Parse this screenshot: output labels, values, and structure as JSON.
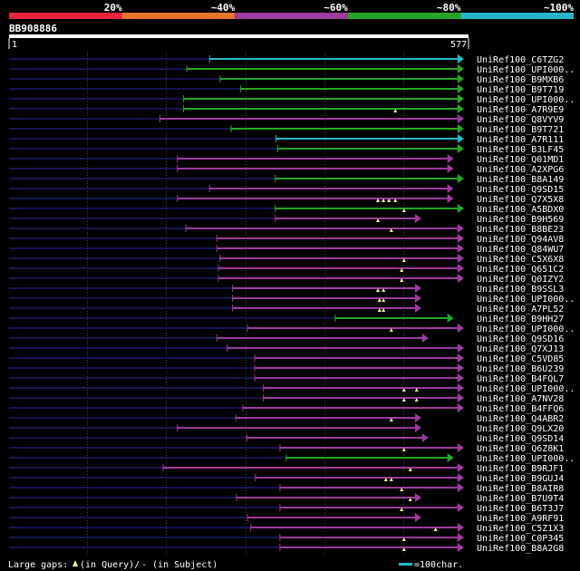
{
  "header": {
    "legend": [
      {
        "label": "20%",
        "color": "#e8243c"
      },
      {
        "label": "~40%",
        "color": "#e8742c"
      },
      {
        "label": "~60%",
        "color": "#9c3c9c"
      },
      {
        "label": "~80%",
        "color": "#26a626"
      },
      {
        "label": "~100%",
        "color": "#26b6c8"
      }
    ],
    "query_id": "BB908886",
    "ruler_start": "1",
    "ruler_end": "577"
  },
  "query_length": 577,
  "alignments": [
    {
      "label": "UniRef100_C6TZG2",
      "start": 255,
      "end": 577,
      "color": "#26b6c8",
      "gaps": []
    },
    {
      "label": "UniRef100_UPI000..",
      "start": 226,
      "end": 577,
      "color": "#26a626",
      "gaps": []
    },
    {
      "label": "UniRef100_B9MXB6",
      "start": 268,
      "end": 577,
      "color": "#26a626",
      "gaps": []
    },
    {
      "label": "UniRef100_B9T719",
      "start": 294,
      "end": 577,
      "color": "#26a626",
      "gaps": []
    },
    {
      "label": "UniRef100_UPI000..",
      "start": 222,
      "end": 577,
      "color": "#26a626",
      "gaps": []
    },
    {
      "label": "UniRef100_A7R9E9",
      "start": 222,
      "end": 577,
      "color": "#26a626",
      "gaps": [
        490
      ]
    },
    {
      "label": "UniRef100_Q8VYV9",
      "start": 192,
      "end": 577,
      "color": "#9c3c9c",
      "gaps": []
    },
    {
      "label": "UniRef100_B9T721",
      "start": 282,
      "end": 577,
      "color": "#26a626",
      "gaps": []
    },
    {
      "label": "UniRef100_A7R111",
      "start": 339,
      "end": 577,
      "color": "#26b6c8",
      "gaps": []
    },
    {
      "label": "UniRef100_B3LF45",
      "start": 341,
      "end": 577,
      "color": "#26a626",
      "gaps": []
    },
    {
      "label": "UniRef100_Q01MD1",
      "start": 214,
      "end": 564,
      "color": "#9c3c9c",
      "gaps": []
    },
    {
      "label": "UniRef100_A2XPG6",
      "start": 214,
      "end": 564,
      "color": "#9c3c9c",
      "gaps": []
    },
    {
      "label": "UniRef100_B8A149",
      "start": 338,
      "end": 577,
      "color": "#26a626",
      "gaps": []
    },
    {
      "label": "UniRef100_Q9SD15",
      "start": 255,
      "end": 564,
      "color": "#9c3c9c",
      "gaps": []
    },
    {
      "label": "UniRef100_Q7X5X8",
      "start": 214,
      "end": 564,
      "color": "#9c3c9c",
      "gaps": [
        468,
        475,
        482,
        490
      ]
    },
    {
      "label": "UniRef100_A5BDX0",
      "start": 338,
      "end": 577,
      "color": "#26a626",
      "gaps": [
        501
      ]
    },
    {
      "label": "UniRef100_B9H569",
      "start": 338,
      "end": 523,
      "color": "#9c3c9c",
      "gaps": [
        468
      ]
    },
    {
      "label": "UniRef100_B8BE23",
      "start": 225,
      "end": 577,
      "color": "#9c3c9c",
      "gaps": [
        485
      ]
    },
    {
      "label": "UniRef100_Q94AV8",
      "start": 264,
      "end": 577,
      "color": "#9c3c9c",
      "gaps": []
    },
    {
      "label": "UniRef100_Q84WU7",
      "start": 264,
      "end": 577,
      "color": "#9c3c9c",
      "gaps": []
    },
    {
      "label": "UniRef100_C5X6X8",
      "start": 268,
      "end": 577,
      "color": "#9c3c9c",
      "gaps": [
        501
      ]
    },
    {
      "label": "UniRef100_Q651C2",
      "start": 266,
      "end": 577,
      "color": "#9c3c9c",
      "gaps": [
        498
      ]
    },
    {
      "label": "UniRef100_Q0IZY2",
      "start": 266,
      "end": 577,
      "color": "#9c3c9c",
      "gaps": [
        498
      ]
    },
    {
      "label": "UniRef100_B9SSL3",
      "start": 284,
      "end": 523,
      "color": "#9c3c9c",
      "gaps": [
        468,
        475
      ]
    },
    {
      "label": "UniRef100_UPI000..",
      "start": 284,
      "end": 523,
      "color": "#9c3c9c",
      "gaps": [
        470,
        475
      ]
    },
    {
      "label": "UniRef100_A7PL52",
      "start": 284,
      "end": 523,
      "color": "#9c3c9c",
      "gaps": [
        470,
        475
      ]
    },
    {
      "label": "UniRef100_B9HH27",
      "start": 414,
      "end": 564,
      "color": "#26a626",
      "gaps": []
    },
    {
      "label": "UniRef100_UPI000..",
      "start": 303,
      "end": 577,
      "color": "#9c3c9c",
      "gaps": [
        485
      ]
    },
    {
      "label": "UniRef100_Q9SD16",
      "start": 264,
      "end": 532,
      "color": "#9c3c9c",
      "gaps": []
    },
    {
      "label": "UniRef100_Q7XJ13",
      "start": 277,
      "end": 577,
      "color": "#9c3c9c",
      "gaps": []
    },
    {
      "label": "UniRef100_C5VD85",
      "start": 312,
      "end": 577,
      "color": "#9c3c9c",
      "gaps": []
    },
    {
      "label": "UniRef100_B6U239",
      "start": 312,
      "end": 577,
      "color": "#9c3c9c",
      "gaps": []
    },
    {
      "label": "UniRef100_B4FQL7",
      "start": 312,
      "end": 577,
      "color": "#9c3c9c",
      "gaps": []
    },
    {
      "label": "UniRef100_UPI000..",
      "start": 323,
      "end": 577,
      "color": "#9c3c9c",
      "gaps": [
        501,
        517
      ]
    },
    {
      "label": "UniRef100_A7NV28",
      "start": 323,
      "end": 577,
      "color": "#9c3c9c",
      "gaps": [
        501,
        517
      ]
    },
    {
      "label": "UniRef100_B4FFQ6",
      "start": 297,
      "end": 577,
      "color": "#9c3c9c",
      "gaps": []
    },
    {
      "label": "UniRef100_Q4ABR2",
      "start": 288,
      "end": 523,
      "color": "#9c3c9c",
      "gaps": [
        485
      ]
    },
    {
      "label": "UniRef100_Q9LX20",
      "start": 214,
      "end": 523,
      "color": "#9c3c9c",
      "gaps": []
    },
    {
      "label": "UniRef100_Q9SD14",
      "start": 302,
      "end": 532,
      "color": "#9c3c9c",
      "gaps": []
    },
    {
      "label": "UniRef100_Q6Z8K1",
      "start": 344,
      "end": 577,
      "color": "#9c3c9c",
      "gaps": [
        501
      ]
    },
    {
      "label": "UniRef100_UPI000..",
      "start": 352,
      "end": 564,
      "color": "#26a626",
      "gaps": []
    },
    {
      "label": "UniRef100_B9RJF1",
      "start": 196,
      "end": 577,
      "color": "#9c3c9c",
      "gaps": [
        509
      ]
    },
    {
      "label": "UniRef100_B9GUJ4",
      "start": 313,
      "end": 577,
      "color": "#9c3c9c",
      "gaps": [
        478,
        485
      ]
    },
    {
      "label": "UniRef100_B8AIR8",
      "start": 344,
      "end": 577,
      "color": "#9c3c9c",
      "gaps": [
        498
      ]
    },
    {
      "label": "UniRef100_B7U9T4",
      "start": 289,
      "end": 523,
      "color": "#9c3c9c",
      "gaps": [
        509
      ]
    },
    {
      "label": "UniRef100_B6T3J7",
      "start": 344,
      "end": 577,
      "color": "#9c3c9c",
      "gaps": [
        498
      ]
    },
    {
      "label": "UniRef100_A9RF91",
      "start": 303,
      "end": 523,
      "color": "#9c3c9c",
      "gaps": []
    },
    {
      "label": "UniRef100_C5Z1X3",
      "start": 307,
      "end": 577,
      "color": "#9c3c9c",
      "gaps": [
        541
      ]
    },
    {
      "label": "UniRef100_C0P345",
      "start": 344,
      "end": 577,
      "color": "#9c3c9c",
      "gaps": [
        501
      ]
    },
    {
      "label": "UniRef100_B8A2G8",
      "start": 344,
      "end": 577,
      "color": "#9c3c9c",
      "gaps": [
        501
      ]
    }
  ],
  "footer": {
    "gaps_label": "Large gaps:",
    "gap_in_query": "(in Query)/",
    "gap_in_subject": "- (in Subject)",
    "scale_label": "=100char.",
    "scale_color": "#26b6c8"
  },
  "colors": {
    "query_line": "#1c1c6c",
    "gridline": "#444444",
    "gap_marker": "#ffffaa"
  }
}
